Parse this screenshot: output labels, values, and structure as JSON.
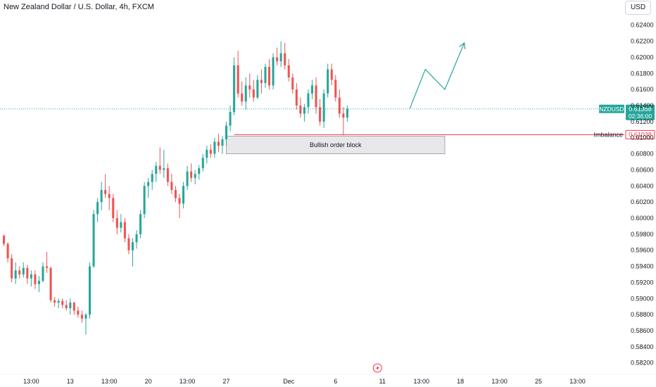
{
  "header": {
    "title": "New Zealand Dollar / U.S. Dollar, 4h, FXCM",
    "currency": "USD"
  },
  "colors": {
    "up": "#26a69a",
    "down": "#ef5350",
    "arrow": "#26a69a",
    "imbalance": "#f23645",
    "price_badge": "#26a69a"
  },
  "chart_data": {
    "type": "candlestick",
    "symbol": "NZDUSD",
    "y_ticks": [
      0.624,
      0.622,
      0.62,
      0.618,
      0.616,
      0.614,
      0.612,
      0.61,
      0.608,
      0.606,
      0.604,
      0.602,
      0.6,
      0.598,
      0.596,
      0.594,
      0.592,
      0.59,
      0.588,
      0.586,
      0.584,
      0.582
    ],
    "y_tick_labels": [
      "0.62400",
      "0.62200",
      "0.62000",
      "0.61800",
      "0.61600",
      "0.61400",
      "0.61200",
      "0.61000",
      "0.60800",
      "0.60600",
      "0.60400",
      "0.60200",
      "0.60000",
      "0.59800",
      "0.59600",
      "0.59400",
      "0.59200",
      "0.59000",
      "0.58800",
      "0.58600",
      "0.58400",
      "0.58200"
    ],
    "ylim": [
      0.5818,
      0.6252
    ],
    "x_ticks": [
      {
        "label": "13:00",
        "bar": 7
      },
      {
        "label": "13",
        "bar": 17
      },
      {
        "label": "13:00",
        "bar": 27
      },
      {
        "label": "20",
        "bar": 37
      },
      {
        "label": "13:00",
        "bar": 47
      },
      {
        "label": "27",
        "bar": 57
      },
      {
        "label": "Dec",
        "bar": 73
      },
      {
        "label": "6",
        "bar": 85
      },
      {
        "label": "11",
        "bar": 97
      },
      {
        "label": "13:00",
        "bar": 107
      },
      {
        "label": "18",
        "bar": 117
      },
      {
        "label": "13:00",
        "bar": 127
      },
      {
        "label": "25",
        "bar": 137
      },
      {
        "label": "13:00",
        "bar": 147
      }
    ],
    "x_range_bars": [
      -1,
      159
    ],
    "candles": [
      [
        0.5978,
        0.598,
        0.5965,
        0.5968
      ],
      [
        0.5968,
        0.597,
        0.5945,
        0.595
      ],
      [
        0.595,
        0.5955,
        0.592,
        0.5925
      ],
      [
        0.5925,
        0.5945,
        0.5918,
        0.5935
      ],
      [
        0.5935,
        0.594,
        0.5925,
        0.593
      ],
      [
        0.593,
        0.5945,
        0.5926,
        0.5938
      ],
      [
        0.5938,
        0.5942,
        0.5918,
        0.5925
      ],
      [
        0.5925,
        0.5935,
        0.5915,
        0.593
      ],
      [
        0.593,
        0.5935,
        0.5912,
        0.5918
      ],
      [
        0.5918,
        0.5928,
        0.5908,
        0.5922
      ],
      [
        0.5922,
        0.5945,
        0.592,
        0.594
      ],
      [
        0.594,
        0.5958,
        0.5932,
        0.5938
      ],
      [
        0.5938,
        0.594,
        0.5895,
        0.5898
      ],
      [
        0.5898,
        0.5902,
        0.589,
        0.5895
      ],
      [
        0.5895,
        0.59,
        0.5888,
        0.5897
      ],
      [
        0.5897,
        0.59,
        0.5888,
        0.5892
      ],
      [
        0.5892,
        0.5898,
        0.5885,
        0.5888
      ],
      [
        0.5888,
        0.59,
        0.588,
        0.5895
      ],
      [
        0.5895,
        0.5896,
        0.588,
        0.5885
      ],
      [
        0.5885,
        0.589,
        0.5876,
        0.588
      ],
      [
        0.588,
        0.5885,
        0.587,
        0.5875
      ],
      [
        0.5875,
        0.5882,
        0.5855,
        0.588
      ],
      [
        0.588,
        0.5945,
        0.5875,
        0.594
      ],
      [
        0.594,
        0.601,
        0.5938,
        0.6005
      ],
      [
        0.6005,
        0.6025,
        0.5995,
        0.602
      ],
      [
        0.602,
        0.6045,
        0.601,
        0.6035
      ],
      [
        0.6035,
        0.6055,
        0.6025,
        0.603
      ],
      [
        0.603,
        0.604,
        0.601,
        0.6025
      ],
      [
        0.6025,
        0.603,
        0.5995,
        0.6
      ],
      [
        0.6,
        0.601,
        0.598,
        0.5988
      ],
      [
        0.5988,
        0.6005,
        0.5982,
        0.5995
      ],
      [
        0.5995,
        0.6,
        0.597,
        0.5975
      ],
      [
        0.5975,
        0.598,
        0.5955,
        0.596
      ],
      [
        0.596,
        0.5975,
        0.594,
        0.597
      ],
      [
        0.597,
        0.5985,
        0.5962,
        0.598
      ],
      [
        0.598,
        0.601,
        0.5975,
        0.6005
      ],
      [
        0.6005,
        0.6045,
        0.6,
        0.604
      ],
      [
        0.604,
        0.605,
        0.6025,
        0.6045
      ],
      [
        0.6045,
        0.606,
        0.6035,
        0.6055
      ],
      [
        0.6055,
        0.607,
        0.6045,
        0.6065
      ],
      [
        0.6065,
        0.6088,
        0.6055,
        0.606
      ],
      [
        0.606,
        0.6085,
        0.605,
        0.6062
      ],
      [
        0.6062,
        0.6068,
        0.604,
        0.6045
      ],
      [
        0.6045,
        0.6055,
        0.603,
        0.6035
      ],
      [
        0.6035,
        0.604,
        0.602,
        0.6025
      ],
      [
        0.6025,
        0.603,
        0.6,
        0.6018
      ],
      [
        0.6018,
        0.6045,
        0.6012,
        0.604
      ],
      [
        0.604,
        0.6065,
        0.6035,
        0.6058
      ],
      [
        0.6058,
        0.6068,
        0.6045,
        0.605
      ],
      [
        0.605,
        0.606,
        0.6042,
        0.6055
      ],
      [
        0.6055,
        0.6066,
        0.6048,
        0.6062
      ],
      [
        0.6062,
        0.608,
        0.6058,
        0.6075
      ],
      [
        0.6075,
        0.609,
        0.6068,
        0.6085
      ],
      [
        0.6085,
        0.6092,
        0.6075,
        0.608
      ],
      [
        0.608,
        0.61,
        0.6075,
        0.6095
      ],
      [
        0.6095,
        0.6105,
        0.6082,
        0.609
      ],
      [
        0.609,
        0.6102,
        0.608,
        0.6098
      ],
      [
        0.6098,
        0.612,
        0.609,
        0.6115
      ],
      [
        0.6115,
        0.614,
        0.6108,
        0.6132
      ],
      [
        0.6132,
        0.62,
        0.6128,
        0.619
      ],
      [
        0.619,
        0.6208,
        0.615,
        0.6155
      ],
      [
        0.6155,
        0.617,
        0.614,
        0.6145
      ],
      [
        0.6145,
        0.6175,
        0.6135,
        0.6165
      ],
      [
        0.6165,
        0.618,
        0.615,
        0.616
      ],
      [
        0.616,
        0.6172,
        0.6145,
        0.615
      ],
      [
        0.615,
        0.6178,
        0.6148,
        0.6172
      ],
      [
        0.6172,
        0.6185,
        0.6155,
        0.6168
      ],
      [
        0.6168,
        0.6192,
        0.6162,
        0.6188
      ],
      [
        0.6188,
        0.6198,
        0.616,
        0.6165
      ],
      [
        0.6165,
        0.6205,
        0.616,
        0.62
      ],
      [
        0.62,
        0.6212,
        0.619,
        0.6195
      ],
      [
        0.6195,
        0.622,
        0.6188,
        0.6205
      ],
      [
        0.6205,
        0.6218,
        0.6185,
        0.619
      ],
      [
        0.619,
        0.6198,
        0.617,
        0.6175
      ],
      [
        0.6175,
        0.618,
        0.6155,
        0.616
      ],
      [
        0.616,
        0.6168,
        0.6135,
        0.614
      ],
      [
        0.614,
        0.615,
        0.6125,
        0.613
      ],
      [
        0.613,
        0.6142,
        0.612,
        0.6138
      ],
      [
        0.6138,
        0.616,
        0.613,
        0.6155
      ],
      [
        0.6155,
        0.6172,
        0.6148,
        0.6165
      ],
      [
        0.6165,
        0.6175,
        0.613,
        0.6138
      ],
      [
        0.6138,
        0.6148,
        0.6115,
        0.612
      ],
      [
        0.612,
        0.616,
        0.6112,
        0.6155
      ],
      [
        0.6155,
        0.6192,
        0.615,
        0.6185
      ],
      [
        0.6185,
        0.6192,
        0.6165,
        0.6172
      ],
      [
        0.6172,
        0.6178,
        0.6145,
        0.615
      ],
      [
        0.615,
        0.616,
        0.6125,
        0.613
      ],
      [
        0.613,
        0.6138,
        0.6103,
        0.6125
      ],
      [
        0.6125,
        0.614,
        0.612,
        0.6136
      ]
    ],
    "projection": [
      [
        104,
        0.6136
      ],
      [
        108,
        0.6185
      ],
      [
        113,
        0.616
      ],
      [
        118,
        0.6218
      ]
    ],
    "projection_arrow": true,
    "order_block": {
      "label": "Bullish order block",
      "bar_start": 57,
      "bar_end": 113,
      "top": 0.6102,
      "bottom": 0.608
    },
    "imbalance": {
      "label": "Imbalance",
      "value": 0.61038,
      "value_label": "0.61038",
      "bar_start": 59
    },
    "last_price": {
      "symbol": "NZDUSD",
      "value": 0.61358,
      "value_label": "0.61358",
      "countdown": "02:36:00"
    }
  }
}
